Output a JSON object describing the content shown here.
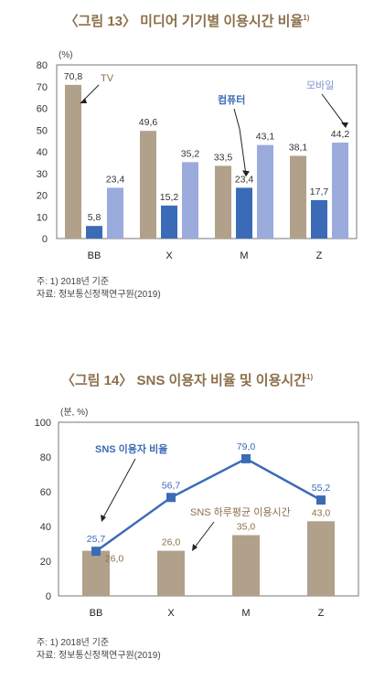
{
  "figure1": {
    "title": "〈그림 13〉 미디어 기기별 이용시간 비율",
    "sup": "1)",
    "unit": "(%)",
    "notes": [
      "주: 1) 2018년 기준",
      "자료: 정보통신정책연구원(2019)"
    ]
  },
  "figure2": {
    "title": "〈그림 14〉 SNS 이용자 비율 및 이용시간",
    "sup": "1)",
    "unit": "(분, %)",
    "notes": [
      "주: 1) 2018년 기준",
      "자료: 정보통신정책연구원(2019)"
    ]
  },
  "chart_data": [
    {
      "type": "bar",
      "categories": [
        "BB",
        "X",
        "M",
        "Z"
      ],
      "series": [
        {
          "name": "TV",
          "values": [
            70.8,
            49.6,
            33.5,
            38.1
          ],
          "color": "#b1a18a"
        },
        {
          "name": "컴퓨터",
          "values": [
            5.8,
            15.2,
            23.4,
            17.7
          ],
          "color": "#3b6bb7"
        },
        {
          "name": "모바일",
          "values": [
            23.4,
            35.2,
            43.1,
            44.2
          ],
          "color": "#9aabdc"
        }
      ],
      "ylim": [
        0,
        80
      ],
      "yticks": [
        0,
        10,
        20,
        30,
        40,
        50,
        60,
        70,
        80
      ],
      "grid": false
    },
    {
      "type": "bar+line",
      "categories": [
        "BB",
        "X",
        "M",
        "Z"
      ],
      "series": [
        {
          "name": "SNS 하루평균 이용시간",
          "type": "bar",
          "values": [
            26.0,
            26.0,
            35.0,
            43.0
          ],
          "color": "#b1a18a"
        },
        {
          "name": "SNS 이용자 비율",
          "type": "line",
          "values": [
            25.7,
            56.7,
            79.0,
            55.2
          ],
          "color": "#3b6bb7"
        }
      ],
      "ylim": [
        0,
        100
      ],
      "yticks": [
        0,
        20,
        40,
        60,
        80,
        100
      ],
      "grid": false
    }
  ]
}
